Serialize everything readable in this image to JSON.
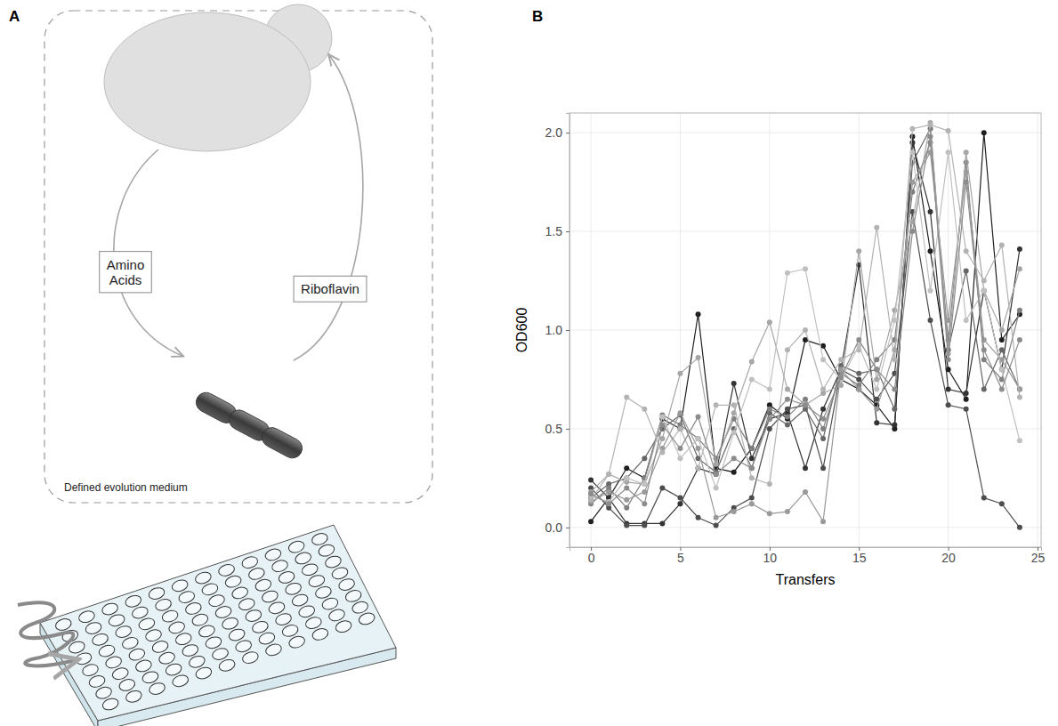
{
  "panels": [
    "A",
    "B"
  ],
  "diagram": {
    "left_label": "Amino Acids",
    "right_label": "Riboflavin",
    "medium_label": "Defined evolution medium"
  },
  "chart_data": {
    "type": "line",
    "xlabel": "Transfers",
    "ylabel": "OD600",
    "x": [
      0,
      1,
      2,
      3,
      4,
      5,
      6,
      7,
      8,
      9,
      10,
      11,
      12,
      13,
      14,
      15,
      16,
      17,
      18,
      19,
      20,
      21,
      22,
      23,
      24
    ],
    "xlim": [
      -1.2,
      25.2
    ],
    "xticks": [
      0,
      5,
      10,
      15,
      20,
      25
    ],
    "ylim": [
      -0.1,
      2.1
    ],
    "yticks": [
      {
        "value": 0,
        "label": "0.0"
      },
      {
        "value": 0.5,
        "label": "0.5"
      },
      {
        "value": 1,
        "label": "1.0"
      },
      {
        "value": 1.5,
        "label": "1.5"
      },
      {
        "value": 2,
        "label": "2.0"
      }
    ],
    "grid": true,
    "marker": "circle",
    "series": [
      {
        "color": "#1f1f1f",
        "values": [
          0.03,
          0.15,
          0.3,
          0.25,
          0.55,
          0.5,
          1.08,
          0.3,
          0.28,
          0.4,
          0.62,
          0.55,
          0.95,
          0.92,
          0.75,
          0.7,
          0.62,
          0.5,
          1.98,
          1.4,
          0.8,
          0.65,
          2.0,
          0.95,
          1.08
        ]
      },
      {
        "color": "#333333",
        "values": [
          0.24,
          0.15,
          0.02,
          0.02,
          0.02,
          0.12,
          0.3,
          0.27,
          0.73,
          0.35,
          0.55,
          0.58,
          0.3,
          0.6,
          0.8,
          1.33,
          0.53,
          0.52,
          1.95,
          1.6,
          0.7,
          0.68,
          1.2,
          0.8,
          1.41
        ]
      },
      {
        "color": "#4d4d4d",
        "values": [
          0.2,
          0.1,
          0.01,
          0.01,
          0.2,
          0.15,
          0.05,
          0.01,
          0.1,
          0.15,
          0.5,
          0.6,
          0.62,
          0.3,
          0.8,
          0.75,
          0.65,
          0.78,
          1.6,
          1.05,
          0.62,
          0.6,
          0.15,
          0.12,
          0.0
        ]
      },
      {
        "color": "#666666",
        "values": [
          0.15,
          0.22,
          0.25,
          0.35,
          0.5,
          0.57,
          0.35,
          0.28,
          0.5,
          0.3,
          0.58,
          0.52,
          0.6,
          0.45,
          0.82,
          0.78,
          0.8,
          0.6,
          1.85,
          2.02,
          0.9,
          1.3,
          0.7,
          0.9,
          0.7
        ]
      },
      {
        "color": "#808080",
        "values": [
          0.12,
          0.2,
          0.1,
          0.25,
          0.57,
          0.52,
          0.45,
          0.35,
          0.55,
          0.4,
          0.6,
          0.56,
          0.65,
          0.5,
          0.78,
          0.72,
          0.85,
          0.95,
          1.7,
          1.95,
          0.95,
          1.85,
          0.85,
          0.75,
          1.1
        ]
      },
      {
        "color": "#999999",
        "values": [
          0.13,
          0.18,
          0.14,
          0.18,
          0.4,
          0.58,
          0.4,
          0.05,
          0.08,
          0.12,
          0.07,
          0.08,
          0.18,
          0.03,
          0.8,
          0.7,
          0.6,
          0.9,
          1.75,
          1.9,
          1.05,
          1.8,
          0.95,
          0.85,
          0.7
        ]
      },
      {
        "color": "#a6a6a6",
        "values": [
          0.18,
          0.27,
          0.23,
          0.22,
          0.45,
          0.78,
          0.86,
          0.32,
          0.58,
          0.84,
          1.04,
          0.7,
          0.62,
          0.68,
          0.72,
          1.4,
          0.75,
          1.1,
          1.55,
          2.05,
          0.88,
          1.9,
          1.2,
          1.0,
          1.31
        ]
      },
      {
        "color": "#b3b3b3",
        "values": [
          0.14,
          0.27,
          0.66,
          0.6,
          0.38,
          0.5,
          0.3,
          0.62,
          0.62,
          0.25,
          0.22,
          0.9,
          1.0,
          0.7,
          0.85,
          0.9,
          1.52,
          0.85,
          2.02,
          2.04,
          2.01,
          1.4,
          1.25,
          1.43,
          0.66
        ]
      },
      {
        "color": "#c0c0c0",
        "values": [
          0.16,
          0.13,
          0.25,
          0.22,
          0.56,
          0.35,
          0.45,
          0.2,
          0.48,
          0.75,
          0.7,
          1.29,
          1.31,
          0.85,
          0.75,
          0.92,
          0.7,
          1.05,
          1.9,
          1.2,
          1.9,
          1.05,
          1.2,
          0.8,
          0.44
        ]
      },
      {
        "color": "#8c8c8c",
        "values": [
          0.17,
          0.12,
          0.2,
          0.12,
          0.52,
          0.4,
          0.56,
          0.27,
          0.35,
          0.3,
          0.55,
          0.65,
          0.62,
          0.55,
          0.76,
          0.95,
          0.8,
          0.7,
          1.5,
          1.98,
          0.85,
          1.75,
          0.9,
          0.7,
          0.95
        ]
      }
    ]
  }
}
